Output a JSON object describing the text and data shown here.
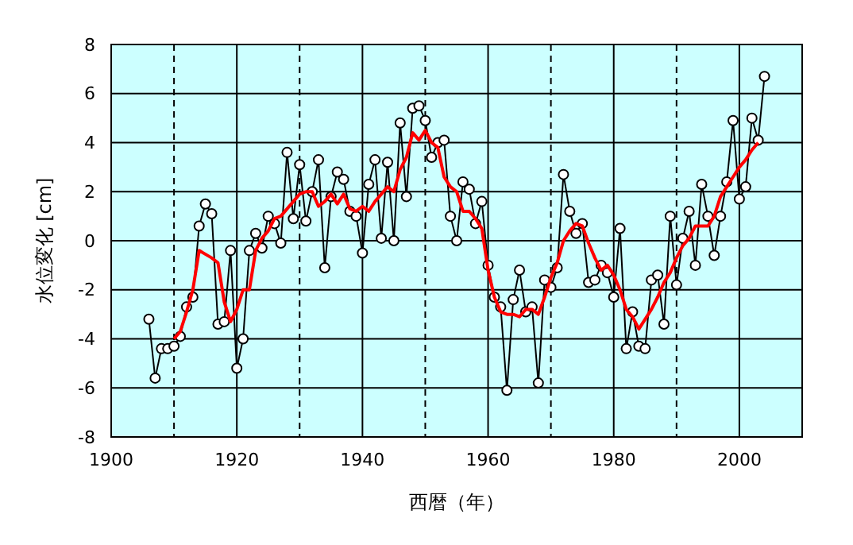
{
  "chart_data": {
    "type": "line",
    "xlabel": "西暦（年）",
    "ylabel": "水位変化 [cm]",
    "xlim": [
      1900,
      2010
    ],
    "ylim": [
      -8,
      8
    ],
    "xticks": [
      1900,
      {
        "value": 1910,
        "label": null
      },
      1920,
      {
        "value": 1930,
        "label": null
      },
      1940,
      {
        "value": 1950,
        "label": null
      },
      1960,
      {
        "value": 1970,
        "label": null
      },
      1980,
      {
        "value": 1990,
        "label": null
      },
      2000
    ],
    "yticks": [
      -8,
      -6,
      -4,
      -2,
      0,
      2,
      4,
      6,
      8
    ],
    "grid": true,
    "series": [
      {
        "color": "#000000",
        "marker": "circle",
        "x": [
          1906,
          1907,
          1908,
          1909,
          1910,
          1911,
          1912,
          1913,
          1914,
          1915,
          1916,
          1917,
          1918,
          1919,
          1920,
          1921,
          1922,
          1923,
          1924,
          1925,
          1926,
          1927,
          1928,
          1929,
          1930,
          1931,
          1932,
          1933,
          1934,
          1935,
          1936,
          1937,
          1938,
          1939,
          1940,
          1941,
          1942,
          1943,
          1944,
          1945,
          1946,
          1947,
          1948,
          1949,
          1950,
          1951,
          1952,
          1953,
          1954,
          1955,
          1956,
          1957,
          1958,
          1959,
          1960,
          1961,
          1962,
          1963,
          1964,
          1965,
          1966,
          1967,
          1968,
          1969,
          1970,
          1971,
          1972,
          1973,
          1974,
          1975,
          1976,
          1977,
          1978,
          1979,
          1980,
          1981,
          1982,
          1983,
          1984,
          1985,
          1986,
          1987,
          1988,
          1989,
          1990,
          1991,
          1992,
          1993,
          1994,
          1995,
          1996,
          1997,
          1998,
          1999,
          2000,
          2001,
          2002,
          2003,
          2004
        ],
        "values": [
          -3.2,
          -5.6,
          -4.4,
          -4.4,
          -4.3,
          -3.9,
          -2.7,
          -2.3,
          0.6,
          1.5,
          1.1,
          -3.4,
          -3.3,
          -0.4,
          -5.2,
          -4.0,
          -0.4,
          0.3,
          -0.3,
          1.0,
          0.7,
          -0.1,
          3.6,
          0.9,
          3.1,
          0.8,
          2.0,
          3.3,
          -1.1,
          1.8,
          2.8,
          2.5,
          1.2,
          1.0,
          -0.5,
          2.3,
          3.3,
          0.1,
          3.2,
          0.0,
          4.8,
          1.8,
          5.4,
          5.5,
          4.9,
          3.4,
          4.0,
          4.1,
          1.0,
          0.0,
          2.4,
          2.1,
          0.7,
          1.6,
          -1.0,
          -2.3,
          -2.7,
          -6.1,
          -2.4,
          -1.2,
          -2.9,
          -2.7,
          -5.8,
          -1.6,
          -1.9,
          -1.1,
          2.7,
          1.2,
          0.3,
          0.7,
          -1.7,
          -1.6,
          -1.0,
          -1.3,
          -2.3,
          0.5,
          -4.4,
          -2.9,
          -4.3,
          -4.4,
          -1.6,
          -1.4,
          -3.4,
          1.0,
          -1.8,
          0.1,
          1.2,
          -1.0,
          2.3,
          1.0,
          -0.6,
          1.0,
          2.4,
          4.9,
          1.7,
          2.2,
          5.0,
          4.1,
          6.7
        ]
      },
      {
        "color": "#ff0000",
        "marker": "none",
        "x": [
          1910,
          1911,
          1912,
          1913,
          1914,
          1916,
          1917,
          1918,
          1919,
          1920,
          1921,
          1922,
          1923,
          1924,
          1925,
          1926,
          1927,
          1928,
          1929,
          1930,
          1931,
          1932,
          1933,
          1934,
          1935,
          1936,
          1937,
          1938,
          1939,
          1940,
          1941,
          1942,
          1943,
          1944,
          1945,
          1946,
          1947,
          1948,
          1949,
          1950,
          1951,
          1952,
          1953,
          1954,
          1955,
          1956,
          1957,
          1958,
          1959,
          1960,
          1961,
          1962,
          1963,
          1964,
          1965,
          1966,
          1967,
          1968,
          1969,
          1970,
          1971,
          1972,
          1973,
          1974,
          1975,
          1976,
          1977,
          1978,
          1979,
          1980,
          1981,
          1982,
          1983,
          1984,
          1985,
          1986,
          1987,
          1988,
          1989,
          1990,
          1991,
          1992,
          1993,
          1994,
          1995,
          1996,
          1997,
          1998,
          1999,
          2000,
          2001,
          2002,
          2003
        ],
        "values": [
          -4.0,
          -3.7,
          -2.9,
          -2.0,
          -0.4,
          -0.7,
          -0.9,
          -2.5,
          -3.3,
          -2.8,
          -2.0,
          -2.0,
          -0.4,
          0.1,
          0.4,
          0.9,
          1.0,
          1.3,
          1.6,
          1.9,
          2.0,
          2.0,
          1.4,
          1.6,
          1.9,
          1.5,
          1.9,
          1.3,
          1.2,
          1.4,
          1.2,
          1.6,
          1.9,
          2.2,
          2.0,
          2.9,
          3.4,
          4.4,
          4.1,
          4.5,
          4.0,
          3.8,
          2.6,
          2.2,
          2.0,
          1.2,
          1.2,
          0.9,
          0.5,
          -1.2,
          -2.3,
          -2.9,
          -3.0,
          -3.0,
          -3.1,
          -2.8,
          -2.8,
          -3.0,
          -2.3,
          -1.5,
          -0.9,
          0.0,
          0.4,
          0.7,
          0.6,
          -0.1,
          -0.7,
          -1.2,
          -1.0,
          -1.4,
          -2.0,
          -2.8,
          -3.1,
          -3.6,
          -3.2,
          -2.8,
          -2.3,
          -1.7,
          -1.3,
          -0.7,
          -0.2,
          0.1,
          0.6,
          0.6,
          0.6,
          1.0,
          1.8,
          2.2,
          2.6,
          3.0,
          3.3,
          3.7,
          4.0
        ]
      }
    ]
  }
}
